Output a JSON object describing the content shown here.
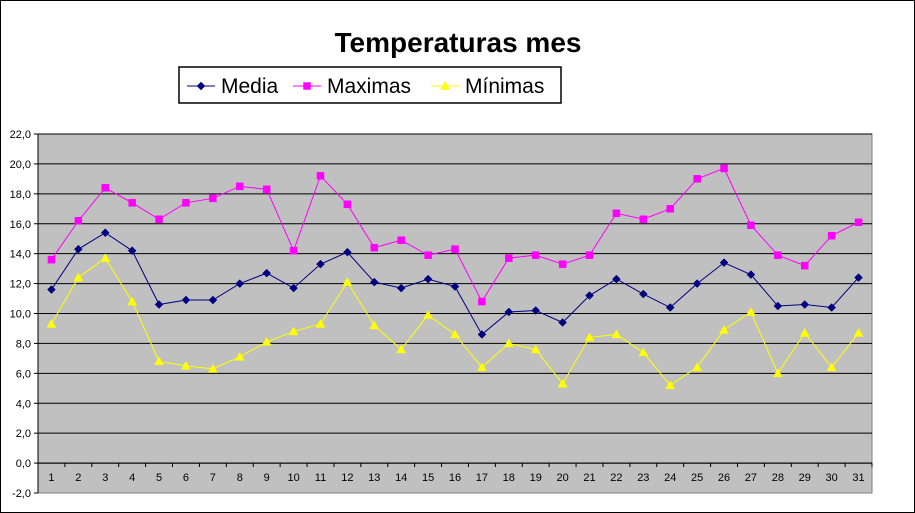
{
  "chart_data": {
    "type": "line",
    "title": "Temperaturas mes",
    "xlabel": "",
    "ylabel": "",
    "categories": [
      "1",
      "2",
      "3",
      "4",
      "5",
      "6",
      "7",
      "8",
      "9",
      "10",
      "11",
      "12",
      "13",
      "14",
      "15",
      "16",
      "17",
      "18",
      "19",
      "20",
      "21",
      "22",
      "23",
      "24",
      "25",
      "26",
      "27",
      "28",
      "29",
      "30",
      "31"
    ],
    "ylim": [
      -2,
      22
    ],
    "yticks": [
      "-2,0",
      "0,0",
      "2,0",
      "4,0",
      "6,0",
      "8,0",
      "10,0",
      "12,0",
      "14,0",
      "16,0",
      "18,0",
      "20,0",
      "22,0"
    ],
    "grid": true,
    "legend_position": "top",
    "plot_background": "#c0c0c0",
    "series": [
      {
        "name": "Media",
        "color": "#000080",
        "marker": "diamond",
        "values": [
          11.6,
          14.3,
          15.4,
          14.2,
          10.6,
          10.9,
          10.9,
          12.0,
          12.7,
          11.7,
          13.3,
          14.1,
          12.1,
          11.7,
          12.3,
          11.8,
          8.6,
          10.1,
          10.2,
          9.4,
          11.2,
          12.3,
          11.3,
          10.4,
          12.0,
          13.4,
          12.6,
          10.5,
          10.6,
          10.4,
          12.4
        ]
      },
      {
        "name": "Maximas",
        "color": "#ff00ff",
        "marker": "square",
        "values": [
          13.6,
          16.2,
          18.4,
          17.4,
          16.3,
          17.4,
          17.7,
          18.5,
          18.3,
          14.2,
          19.2,
          17.3,
          14.4,
          14.9,
          13.9,
          14.3,
          10.8,
          13.7,
          13.9,
          13.3,
          13.9,
          16.7,
          16.3,
          17.0,
          19.0,
          19.7,
          15.9,
          13.9,
          13.2,
          15.2,
          16.1
        ]
      },
      {
        "name": "Mínimas",
        "color": "#ffff00",
        "marker": "triangle",
        "values": [
          9.3,
          12.4,
          13.7,
          10.8,
          6.8,
          6.5,
          6.3,
          7.1,
          8.1,
          8.8,
          9.3,
          12.1,
          9.2,
          7.6,
          9.9,
          8.6,
          6.4,
          8.0,
          7.6,
          5.3,
          8.4,
          8.6,
          7.4,
          5.2,
          6.4,
          8.9,
          10.1,
          6.0,
          8.7,
          6.4,
          8.7
        ]
      }
    ]
  }
}
